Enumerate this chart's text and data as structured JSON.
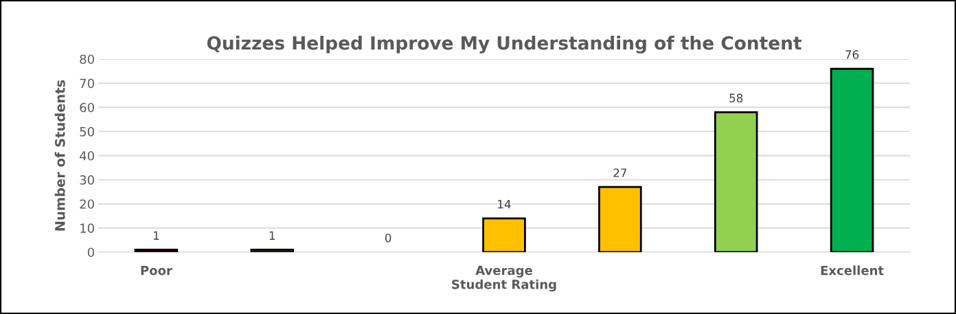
{
  "chart_data": {
    "type": "bar",
    "title": "Quizzes Helped Improve My Understanding of the Content",
    "xlabel": "Student Rating",
    "ylabel": "Number of Students",
    "categories": [
      "Poor",
      null,
      null,
      "Average",
      null,
      null,
      "Excellent"
    ],
    "values": [
      1,
      1,
      0,
      14,
      27,
      58,
      76
    ],
    "colors": [
      "#c00000",
      "#c55a11",
      "#ed7d31",
      "#ffc000",
      "#ffc000",
      "#92d050",
      "#00b050"
    ],
    "ylim": [
      0,
      80
    ],
    "yticks": [
      0,
      10,
      20,
      30,
      40,
      50,
      60,
      70,
      80
    ],
    "grid": "y",
    "data_labels": true
  }
}
